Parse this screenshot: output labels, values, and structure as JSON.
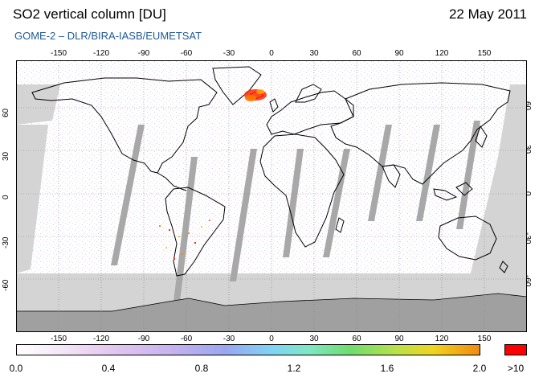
{
  "header": {
    "title": "SO2 vertical column [DU]",
    "date": "22 May 2011",
    "subtitle": "GOME-2 – DLR/BIRA-IASB/EUMETSAT"
  },
  "map": {
    "lon_ticks": [
      "-150",
      "-120",
      "-90",
      "-60",
      "-30",
      "0",
      "30",
      "60",
      "90",
      "120",
      "150"
    ],
    "lat_ticks": [
      "60",
      "30",
      "0",
      "-30",
      "-60"
    ],
    "colors": {
      "ocean_nodata": "#d4d4d4",
      "orbit_gap": "#a8a8a8",
      "antarctica": "#a0a0a0",
      "coastline": "#000000",
      "hotspot": "#ff2a00"
    },
    "hotspot_region": "Iceland"
  },
  "colorbar": {
    "labels": [
      "0.0",
      "0.4",
      "0.8",
      "1.2",
      "1.6",
      "2.0"
    ],
    "overflow_label": ">10",
    "min": 0.0,
    "max": 2.0,
    "overflow_color": "#ff0000"
  }
}
